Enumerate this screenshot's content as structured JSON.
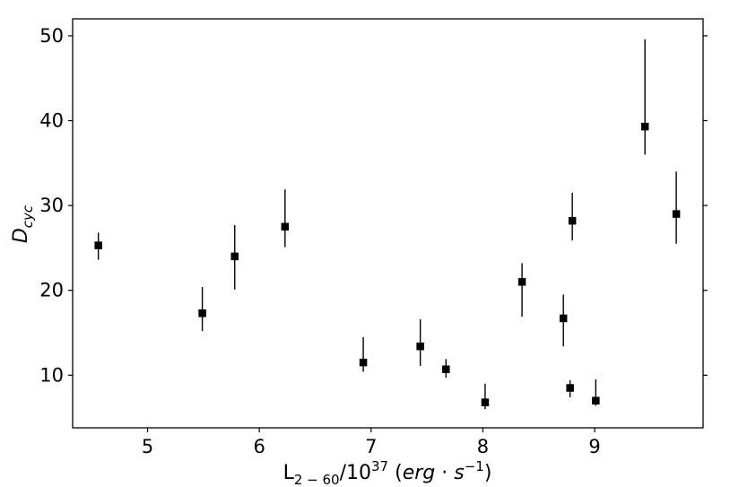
{
  "chart_data": {
    "type": "scatter",
    "title": "",
    "xlabel": {
      "main": "L",
      "sub": "2 − 60",
      "mid": "/10",
      "sup": "37",
      "unit_open": " (",
      "unit": "erg",
      "dot": " · ",
      "unit2": "s",
      "unit_sup": "−1",
      "unit_close": ")"
    },
    "ylabel": {
      "main": "D",
      "sub": "cyc"
    },
    "xlim": [
      4.33,
      9.97
    ],
    "ylim": [
      3.8,
      52.0
    ],
    "xticks": [
      5,
      6,
      7,
      8,
      9
    ],
    "yticks": [
      10,
      20,
      30,
      40,
      50
    ],
    "grid": false,
    "marker": "square",
    "color": "#000000",
    "points": [
      {
        "x": 4.56,
        "y": 25.3,
        "yerr_low": 23.6,
        "yerr_high": 26.8
      },
      {
        "x": 5.49,
        "y": 17.3,
        "yerr_low": 15.2,
        "yerr_high": 20.4
      },
      {
        "x": 5.78,
        "y": 24.0,
        "yerr_low": 20.1,
        "yerr_high": 27.7
      },
      {
        "x": 6.23,
        "y": 27.5,
        "yerr_low": 25.1,
        "yerr_high": 31.9
      },
      {
        "x": 6.93,
        "y": 11.5,
        "yerr_low": 10.4,
        "yerr_high": 14.5
      },
      {
        "x": 7.44,
        "y": 13.4,
        "yerr_low": 11.1,
        "yerr_high": 16.6
      },
      {
        "x": 7.67,
        "y": 10.7,
        "yerr_low": 9.7,
        "yerr_high": 11.9
      },
      {
        "x": 8.02,
        "y": 6.8,
        "yerr_low": 6.0,
        "yerr_high": 9.0
      },
      {
        "x": 8.35,
        "y": 21.0,
        "yerr_low": 16.9,
        "yerr_high": 23.2
      },
      {
        "x": 8.72,
        "y": 16.7,
        "yerr_low": 13.4,
        "yerr_high": 19.5
      },
      {
        "x": 8.78,
        "y": 8.5,
        "yerr_low": 7.4,
        "yerr_high": 9.4
      },
      {
        "x": 8.8,
        "y": 28.2,
        "yerr_low": 25.9,
        "yerr_high": 31.5
      },
      {
        "x": 9.01,
        "y": 7.0,
        "yerr_low": 6.4,
        "yerr_high": 9.5
      },
      {
        "x": 9.45,
        "y": 39.3,
        "yerr_low": 36.0,
        "yerr_high": 49.6
      },
      {
        "x": 9.73,
        "y": 29.0,
        "yerr_low": 25.5,
        "yerr_high": 34.0
      }
    ]
  }
}
